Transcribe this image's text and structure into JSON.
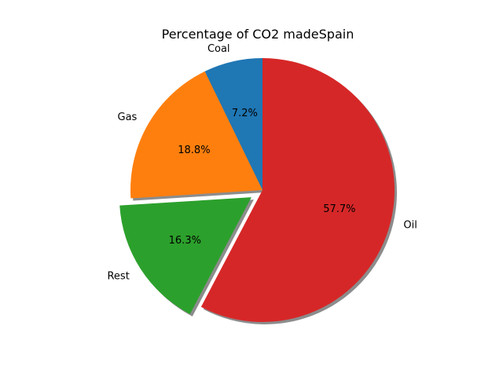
{
  "chart_data": {
    "type": "pie",
    "title": "Percentage of CO2 madeSpain",
    "slices": [
      {
        "label": "Coal",
        "value": 7.2,
        "pct_label": "7.2%",
        "color": "#1f77b4",
        "explode": 0
      },
      {
        "label": "Gas",
        "value": 18.8,
        "pct_label": "18.8%",
        "color": "#ff7f0e",
        "explode": 0
      },
      {
        "label": "Rest",
        "value": 16.3,
        "pct_label": "16.3%",
        "color": "#2ca02c",
        "explode": 0.1
      },
      {
        "label": "Oil",
        "value": 57.7,
        "pct_label": "57.7%",
        "color": "#d62728",
        "explode": 0
      }
    ],
    "start_angle_deg": 90,
    "direction": "counterclockwise",
    "shadow": true
  }
}
